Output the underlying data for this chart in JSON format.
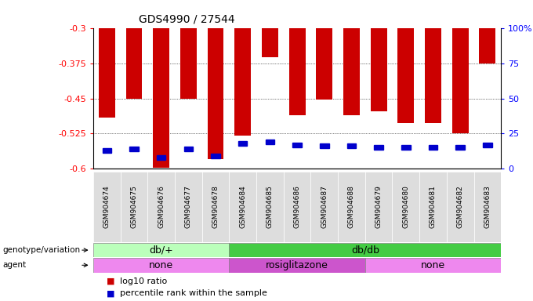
{
  "title": "GDS4990 / 27544",
  "samples": [
    "GSM904674",
    "GSM904675",
    "GSM904676",
    "GSM904677",
    "GSM904678",
    "GSM904684",
    "GSM904685",
    "GSM904686",
    "GSM904687",
    "GSM904688",
    "GSM904679",
    "GSM904680",
    "GSM904681",
    "GSM904682",
    "GSM904683"
  ],
  "log10_ratio": [
    -0.49,
    -0.45,
    -0.598,
    -0.45,
    -0.58,
    -0.53,
    -0.362,
    -0.485,
    -0.452,
    -0.485,
    -0.478,
    -0.503,
    -0.503,
    -0.525,
    -0.375
  ],
  "percentile_rank": [
    13,
    14,
    8,
    14,
    9,
    18,
    19,
    17,
    16,
    16,
    15,
    15,
    15,
    15,
    17
  ],
  "ylim_left": [
    -0.6,
    -0.3
  ],
  "ylim_right": [
    0,
    100
  ],
  "yticks_left": [
    -0.6,
    -0.525,
    -0.45,
    -0.375,
    -0.3
  ],
  "yticks_right": [
    0,
    25,
    50,
    75,
    100
  ],
  "bar_color": "#cc0000",
  "percentile_color": "#0000cc",
  "genotype_groups": [
    {
      "label": "db/+",
      "start": 0,
      "end": 5,
      "color": "#bbffbb"
    },
    {
      "label": "db/db",
      "start": 5,
      "end": 15,
      "color": "#44cc44"
    }
  ],
  "agent_groups": [
    {
      "label": "none",
      "start": 0,
      "end": 5,
      "color": "#ee88ee"
    },
    {
      "label": "rosiglitazone",
      "start": 5,
      "end": 10,
      "color": "#cc55cc"
    },
    {
      "label": "none",
      "start": 10,
      "end": 15,
      "color": "#ee88ee"
    }
  ],
  "left_label_genotype": "genotype/variation",
  "left_label_agent": "agent",
  "legend_red": "log10 ratio",
  "legend_blue": "percentile rank within the sample",
  "bar_width": 0.6
}
